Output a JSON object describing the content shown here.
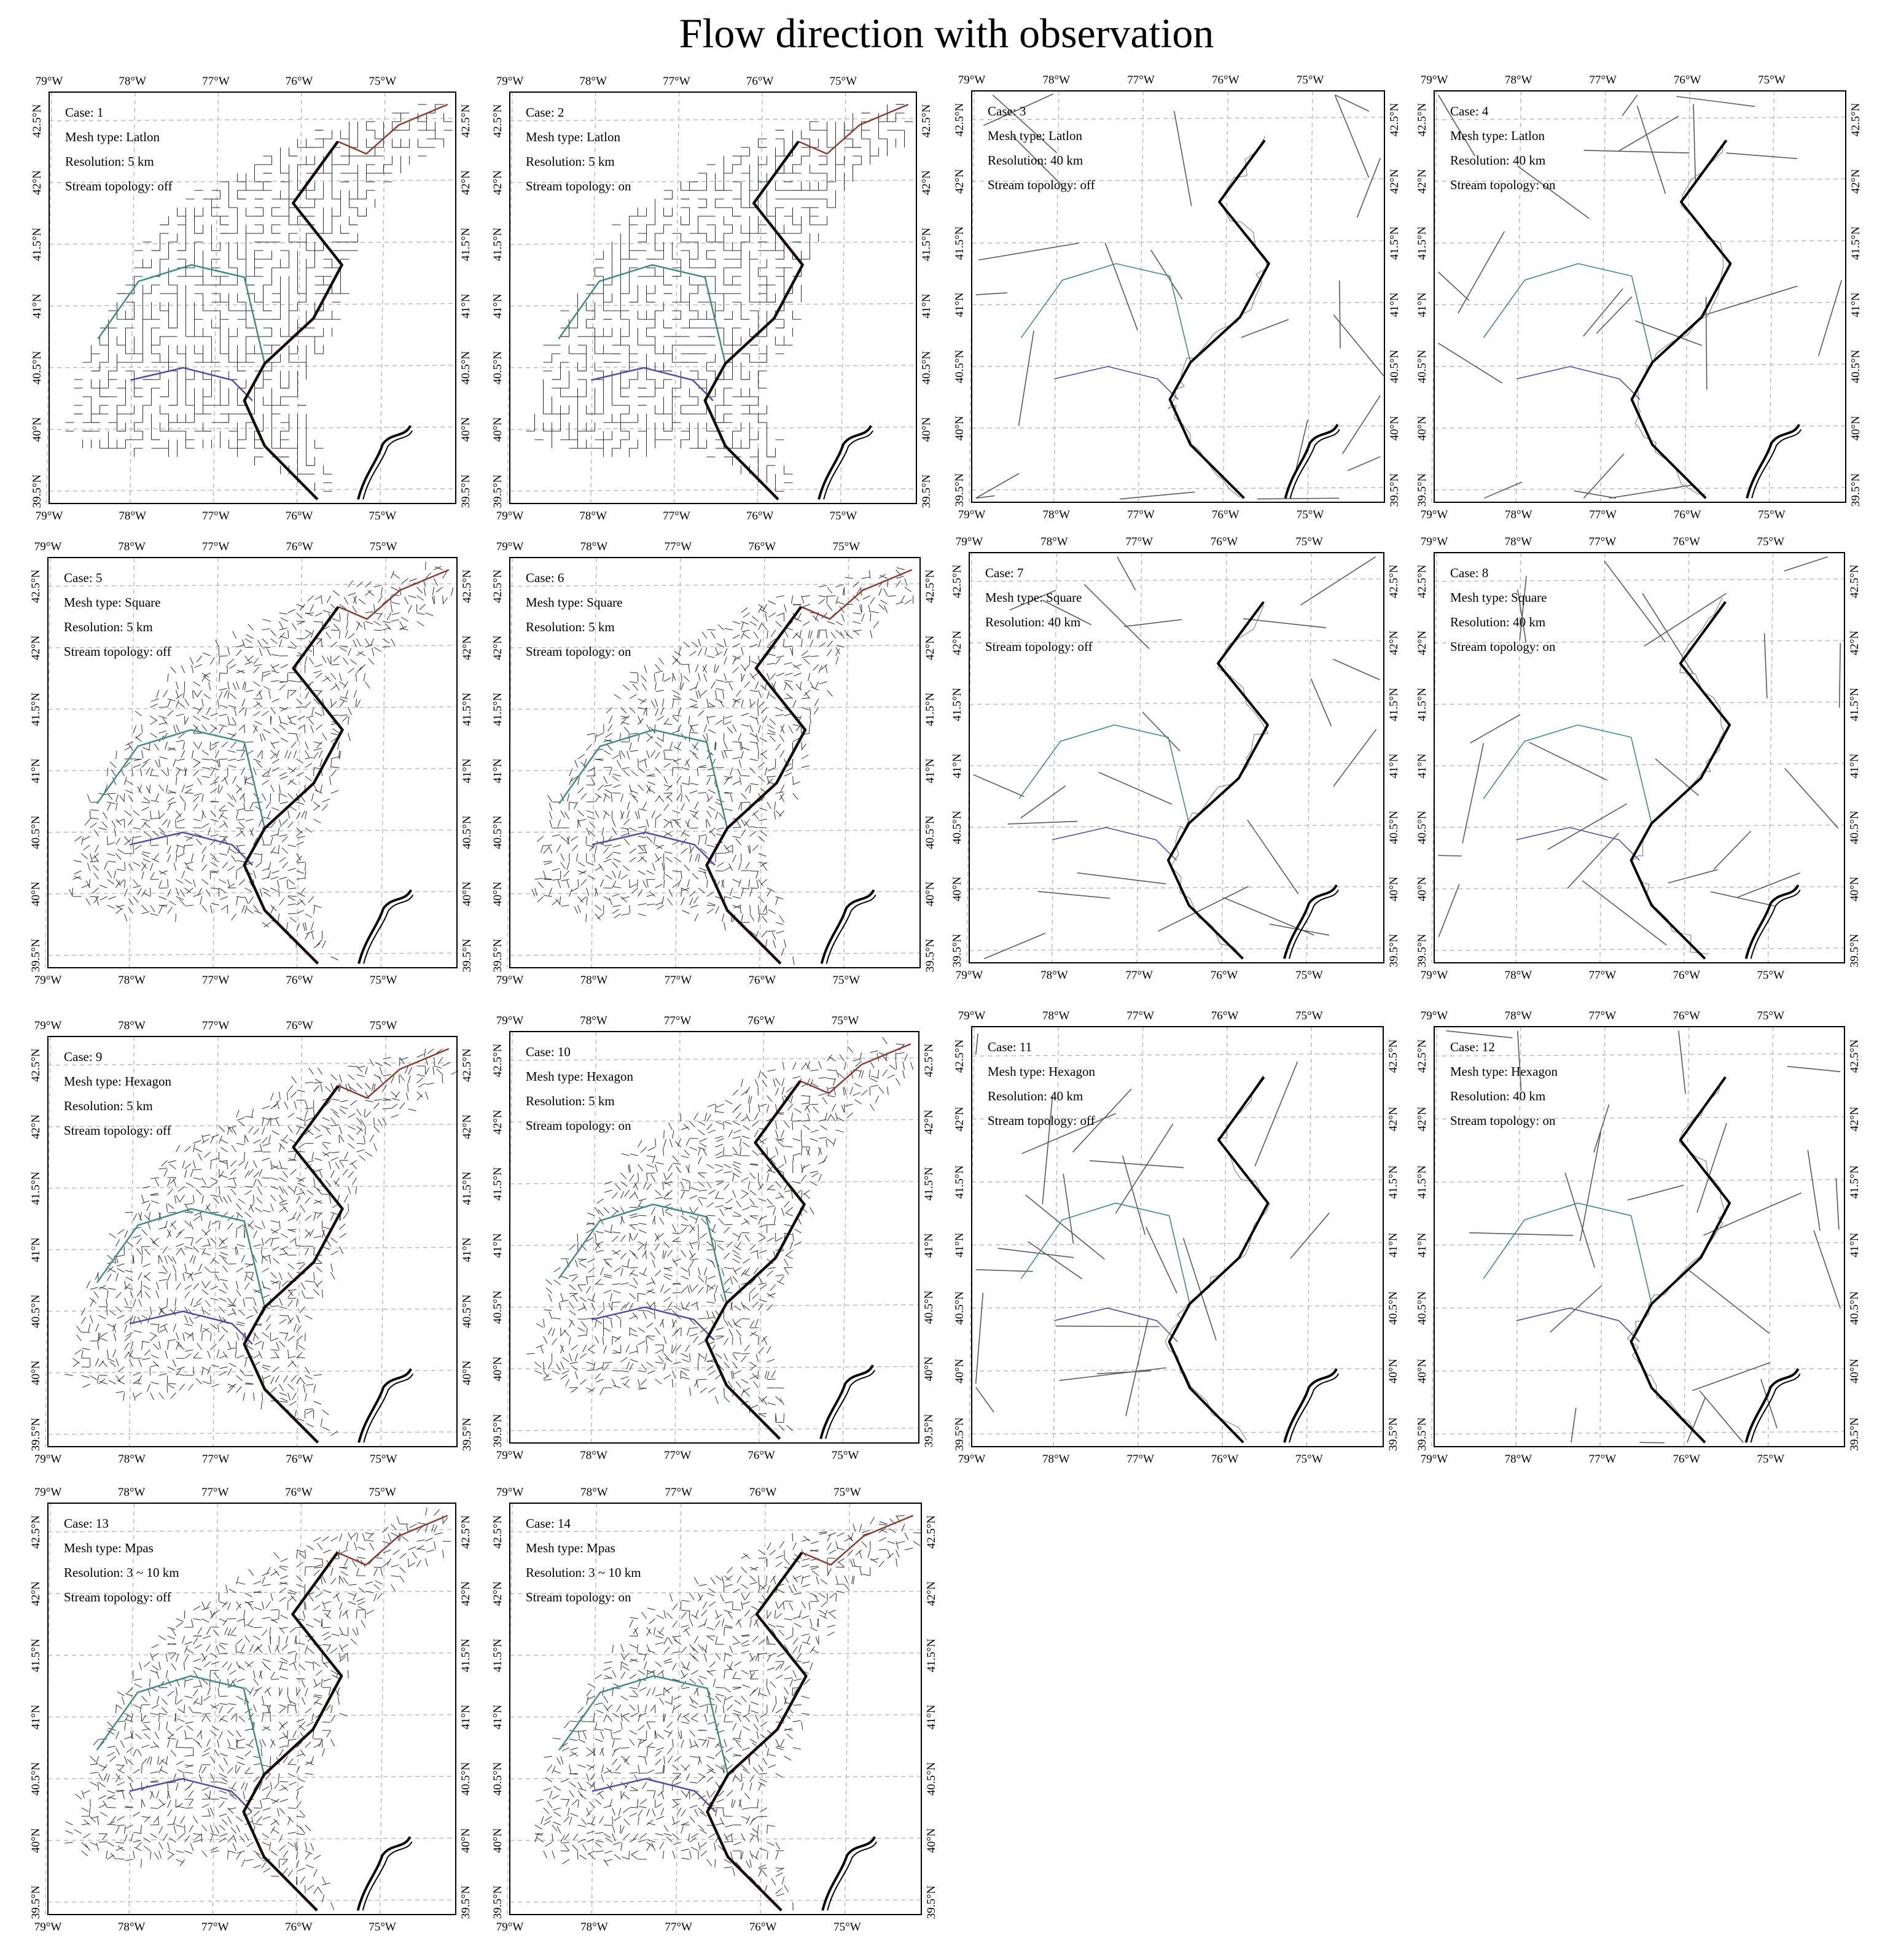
{
  "figure": {
    "title": "Flow direction with observation"
  },
  "axes_labels": {
    "lon": [
      "79°W",
      "78°W",
      "77°W",
      "76°W",
      "75°W"
    ],
    "lat": [
      "39.5°N",
      "40°N",
      "40.5°N",
      "41°N",
      "41.5°N",
      "42°N",
      "42.5°N"
    ]
  },
  "field_labels": {
    "case": "Case:",
    "mesh_type": "Mesh type:",
    "resolution": "Resolution:",
    "stream_topology": "Stream topology:"
  },
  "panels": [
    {
      "case": "1",
      "mesh_type": "Latlon",
      "resolution": "5 km",
      "stream_topology": "off"
    },
    {
      "case": "2",
      "mesh_type": "Latlon",
      "resolution": "5 km",
      "stream_topology": "on"
    },
    {
      "case": "3",
      "mesh_type": "Latlon",
      "resolution": "40 km",
      "stream_topology": "off"
    },
    {
      "case": "4",
      "mesh_type": "Latlon",
      "resolution": "40 km",
      "stream_topology": "on"
    },
    {
      "case": "5",
      "mesh_type": "Square",
      "resolution": "5 km",
      "stream_topology": "off"
    },
    {
      "case": "6",
      "mesh_type": "Square",
      "resolution": "5 km",
      "stream_topology": "on"
    },
    {
      "case": "7",
      "mesh_type": "Square",
      "resolution": "40 km",
      "stream_topology": "off"
    },
    {
      "case": "8",
      "mesh_type": "Square",
      "resolution": "40 km",
      "stream_topology": "on"
    },
    {
      "case": "9",
      "mesh_type": "Hexagon",
      "resolution": "5 km",
      "stream_topology": "off"
    },
    {
      "case": "10",
      "mesh_type": "Hexagon",
      "resolution": "5 km",
      "stream_topology": "on"
    },
    {
      "case": "11",
      "mesh_type": "Hexagon",
      "resolution": "40 km",
      "stream_topology": "off"
    },
    {
      "case": "12",
      "mesh_type": "Hexagon",
      "resolution": "40 km",
      "stream_topology": "on"
    },
    {
      "case": "13",
      "mesh_type": "Mpas",
      "resolution": "3 ~ 10 km",
      "stream_topology": "off"
    },
    {
      "case": "14",
      "mesh_type": "Mpas",
      "resolution": "3 ~ 10 km",
      "stream_topology": "on"
    }
  ],
  "colors": {
    "frame": "#000000",
    "grid": "#b8b8b8",
    "network": "#2b2b2b",
    "main_channel": "#1a0c0c",
    "tributary_north": "#8b3a2e",
    "tributary_west": "#3f8a8a",
    "tributary_south": "#5a4aa8",
    "coast": "#000000"
  }
}
